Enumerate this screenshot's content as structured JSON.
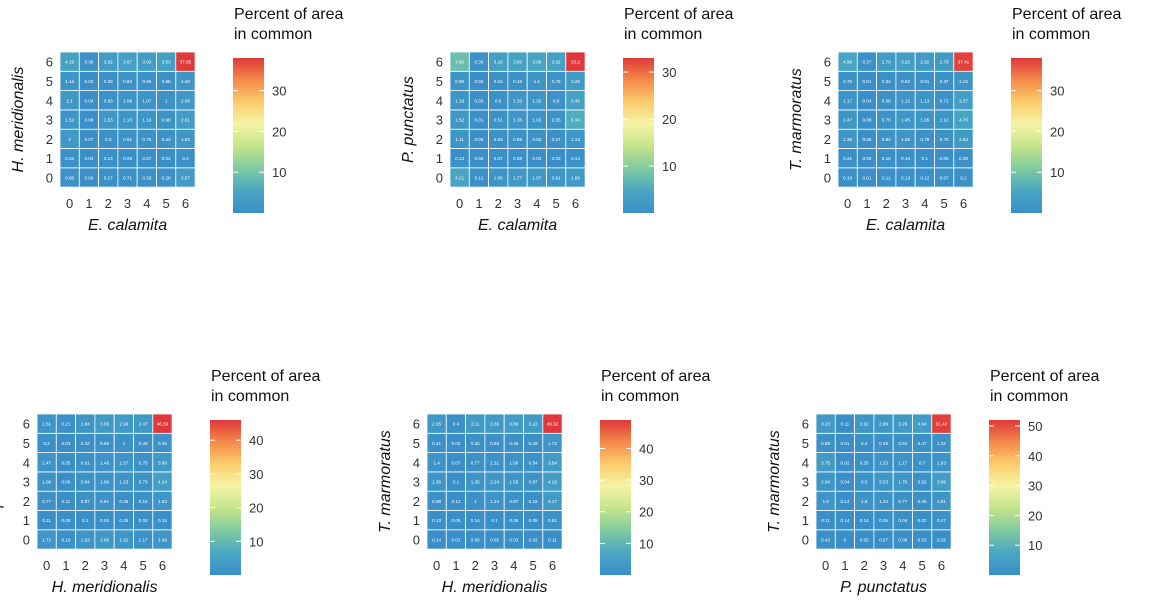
{
  "legend_title_line1": "Percent of area",
  "legend_title_line2": "in common",
  "colors": {
    "scale": [
      "#3a8fc8",
      "#4aa7c3",
      "#7fcaa0",
      "#c4e58a",
      "#f4f4a6",
      "#fbcd6b",
      "#f58a4a",
      "#e0383a"
    ],
    "cell_text": "#ffffff",
    "axis_text": "#333333"
  },
  "chart_data": [
    {
      "type": "heatmap",
      "xlabel": "E. calamita",
      "ylabel": "H. meridionalis",
      "x_categories": [
        "0",
        "1",
        "2",
        "3",
        "4",
        "5",
        "6"
      ],
      "y_categories": [
        "0",
        "1",
        "2",
        "3",
        "4",
        "5",
        "6"
      ],
      "color_range": [
        0,
        38
      ],
      "legend_ticks": [
        10,
        20,
        30
      ],
      "values": [
        [
          0.95,
          0.06,
          0.17,
          0.71,
          0.33,
          0.28,
          2.57
        ],
        [
          0.23,
          0.04,
          0.13,
          0.09,
          0.07,
          0.03,
          0.2
        ],
        [
          2,
          0.07,
          0.3,
          0.81,
          0.75,
          0.43,
          1.82
        ],
        [
          1.52,
          0.08,
          1.53,
          1.13,
          1.16,
          0.98,
          2.91
        ],
        [
          2.1,
          0.04,
          0.83,
          1.08,
          1.07,
          1,
          2.08
        ],
        [
          1.16,
          0.02,
          0.28,
          0.83,
          0.66,
          0.65,
          1.46
        ],
        [
          4.19,
          0.36,
          3.02,
          3.67,
          3.03,
          3.53,
          37.85
        ]
      ]
    },
    {
      "type": "heatmap",
      "xlabel": "E. calamita",
      "ylabel": "P. punctatus",
      "x_categories": [
        "0",
        "1",
        "2",
        "3",
        "4",
        "5",
        "6"
      ],
      "y_categories": [
        "0",
        "1",
        "2",
        "3",
        "4",
        "5",
        "6"
      ],
      "color_range": [
        0,
        33
      ],
      "legend_ticks": [
        10,
        20,
        30
      ],
      "values": [
        [
          4.21,
          0.12,
          1.06,
          1.77,
          1.67,
          0.91,
          1.89
        ],
        [
          0.13,
          0.02,
          0.07,
          0.08,
          0.03,
          0.02,
          0.13
        ],
        [
          1.11,
          0.05,
          0.63,
          0.85,
          0.53,
          0.27,
          1.13
        ],
        [
          1.52,
          0.01,
          0.51,
          1.35,
          1.03,
          0.55,
          5.34
        ],
        [
          1.18,
          0.03,
          0.6,
          1.33,
          1.32,
          0.8,
          3.45
        ],
        [
          0.99,
          0.02,
          0.15,
          0.48,
          1.1,
          0.75,
          2.25
        ],
        [
          7.66,
          0.36,
          3.16,
          3.92,
          3.98,
          3.62,
          33.2
        ]
      ]
    },
    {
      "type": "heatmap",
      "xlabel": "E. calamita",
      "ylabel": "T. marmoratus",
      "x_categories": [
        "0",
        "1",
        "2",
        "3",
        "4",
        "5",
        "6"
      ],
      "y_categories": [
        "0",
        "1",
        "2",
        "3",
        "4",
        "5",
        "6"
      ],
      "color_range": [
        0,
        38
      ],
      "legend_ticks": [
        10,
        20,
        30
      ],
      "values": [
        [
          0.19,
          0.01,
          0.11,
          0.13,
          0.12,
          0.07,
          0.2
        ],
        [
          0.21,
          0.05,
          0.15,
          0.16,
          0.1,
          0.05,
          0.28
        ],
        [
          1.36,
          0.06,
          0.82,
          1.06,
          0.79,
          0.75,
          2.53
        ],
        [
          1.47,
          0.08,
          0.75,
          1.45,
          1.05,
          1.12,
          4.76
        ],
        [
          1.17,
          0.04,
          0.56,
          1.12,
          1.13,
          0.71,
          3.37
        ],
        [
          0.75,
          0.01,
          0.32,
          0.62,
          0.51,
          0.37,
          1.15
        ],
        [
          4.99,
          0.37,
          2.79,
          3.26,
          2.82,
          2.78,
          37.41
        ]
      ]
    },
    {
      "type": "heatmap",
      "xlabel": "H. meridionalis",
      "ylabel": "P. punctatus",
      "x_categories": [
        "0",
        "1",
        "2",
        "3",
        "4",
        "5",
        "6"
      ],
      "y_categories": [
        "0",
        "1",
        "2",
        "3",
        "4",
        "5",
        "6"
      ],
      "color_range": [
        0,
        46
      ],
      "legend_ticks": [
        10,
        20,
        30,
        40
      ],
      "values": [
        [
          1.72,
          0.16,
          1.63,
          2.06,
          1.62,
          1.17,
          1.66
        ],
        [
          0.11,
          0.05,
          0.1,
          0.03,
          0.05,
          0.03,
          0.15
        ],
        [
          0.77,
          0.11,
          0.87,
          0.61,
          0.36,
          0.16,
          1.63
        ],
        [
          1.06,
          0.06,
          0.84,
          1.08,
          1.23,
          0.73,
          4.24
        ],
        [
          1.47,
          0.05,
          0.61,
          1.46,
          1.57,
          0.75,
          3.06
        ],
        [
          0.2,
          0.03,
          0.32,
          0.69,
          1,
          0.49,
          0.46
        ],
        [
          1.51,
          0.21,
          1.84,
          3.05,
          2.96,
          2.47,
          46.59
        ]
      ]
    },
    {
      "type": "heatmap",
      "xlabel": "H. meridionalis",
      "ylabel": "T. marmoratus",
      "x_categories": [
        "0",
        "1",
        "2",
        "3",
        "4",
        "5",
        "6"
      ],
      "y_categories": [
        "0",
        "1",
        "2",
        "3",
        "4",
        "5",
        "6"
      ],
      "color_range": [
        0,
        49
      ],
      "legend_ticks": [
        10,
        20,
        30,
        40
      ],
      "values": [
        [
          0.14,
          0.01,
          0.06,
          0.05,
          0.03,
          0.02,
          0.11
        ],
        [
          0.13,
          0.05,
          0.14,
          0.1,
          0.05,
          0.05,
          0.51
        ],
        [
          0.98,
          0.12,
          1,
          1.34,
          0.87,
          0.19,
          3.17
        ],
        [
          1.36,
          0.1,
          1.35,
          2.24,
          1.56,
          0.87,
          4.16
        ],
        [
          1.4,
          0.07,
          0.77,
          1.31,
          1.06,
          0.54,
          3.54
        ],
        [
          0.41,
          0.03,
          0.32,
          0.58,
          0.49,
          0.28,
          1.72
        ],
        [
          2.65,
          0.4,
          3.11,
          3.36,
          3.69,
          3.22,
          49.32
        ]
      ]
    },
    {
      "type": "heatmap",
      "xlabel": "P. punctatus",
      "ylabel": "T. marmoratus",
      "x_categories": [
        "0",
        "1",
        "2",
        "3",
        "4",
        "5",
        "6"
      ],
      "y_categories": [
        "0",
        "1",
        "2",
        "3",
        "4",
        "5",
        "6"
      ],
      "color_range": [
        0,
        52
      ],
      "legend_ticks": [
        10,
        20,
        30,
        40,
        50
      ],
      "values": [
        [
          0.42,
          0,
          0.05,
          0.07,
          0.08,
          0.03,
          0.15
        ],
        [
          0.11,
          0.14,
          0.14,
          0.05,
          0.04,
          0.02,
          0.47
        ],
        [
          1.9,
          0.14,
          1.5,
          1.24,
          0.77,
          0.45,
          1.91
        ],
        [
          2.04,
          0.04,
          0.9,
          2.03,
          1.76,
          0.62,
          3.99
        ],
        [
          3.75,
          0.02,
          0.35,
          1.25,
          1.17,
          0.7,
          1.63
        ],
        [
          0.89,
          0.01,
          0.2,
          0.49,
          0.51,
          0.47,
          1.32
        ],
        [
          3.23,
          0.11,
          2.02,
          2.86,
          3.29,
          4.04,
          51.42
        ]
      ]
    }
  ]
}
